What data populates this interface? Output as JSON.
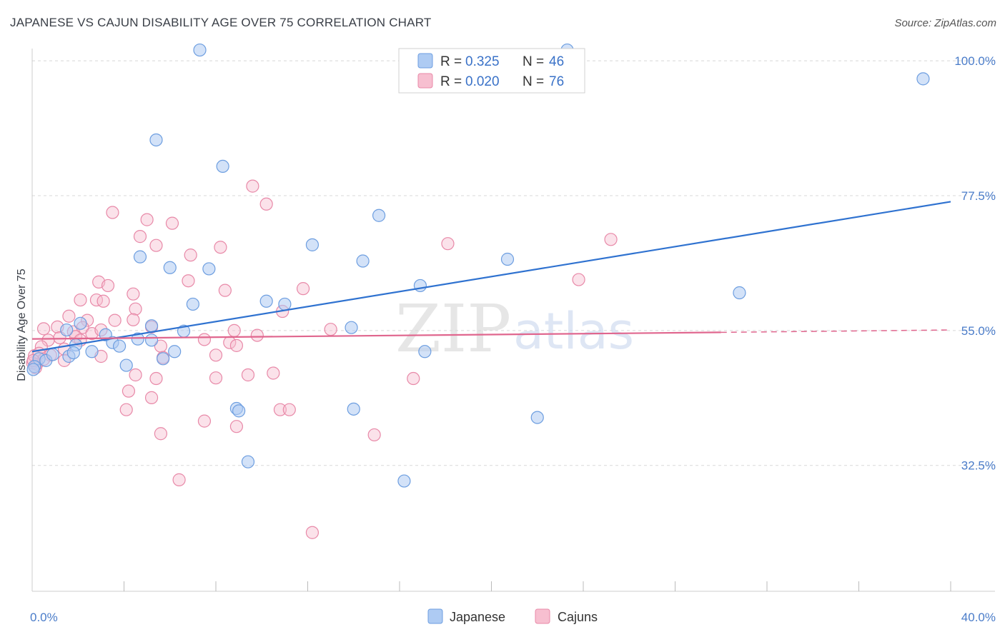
{
  "title": "JAPANESE VS CAJUN DISABILITY AGE OVER 75 CORRELATION CHART",
  "source": "Source: ZipAtlas.com",
  "watermark": {
    "zip": "ZIP",
    "atlas": "atlas"
  },
  "colors": {
    "japanese_fill": "#aecbf3",
    "japanese_stroke": "#6d9ee0",
    "japanese_line": "#2f72d0",
    "cajun_fill": "#f7bfd0",
    "cajun_stroke": "#e889a8",
    "cajun_line": "#e0668e",
    "grid": "#d8d8d8",
    "axis_label": "#4a7cc9"
  },
  "legend": {
    "rows": [
      {
        "r_label": "R =",
        "r_value": "0.325",
        "n_label": "N =",
        "n_value": "46"
      },
      {
        "r_label": "R =",
        "r_value": "0.020",
        "n_label": "N =",
        "n_value": "76"
      }
    ]
  },
  "bottom_legend": [
    "Japanese",
    "Cajuns"
  ],
  "chart_data": {
    "type": "scatter",
    "title": "JAPANESE VS CAJUN DISABILITY AGE OVER 75 CORRELATION CHART",
    "xlabel": "",
    "ylabel": "Disability Age Over 75",
    "xlim": [
      0,
      40
    ],
    "ylim": [
      11.5,
      103
    ],
    "x_tick_labels": [
      "0.0%",
      "40.0%"
    ],
    "y_ticks": [
      32.5,
      55.0,
      77.5,
      100.0
    ],
    "y_tick_labels": [
      "32.5%",
      "55.0%",
      "77.5%",
      "100.0%"
    ],
    "grid": true,
    "legend_position": "top-center",
    "series": [
      {
        "name": "Japanese",
        "trend": {
          "x": [
            0,
            40
          ],
          "y": [
            51.5,
            76.5
          ]
        },
        "points": [
          [
            7.3,
            101.8
          ],
          [
            23.3,
            101.8
          ],
          [
            38.8,
            97.0
          ],
          [
            5.4,
            86.8
          ],
          [
            8.3,
            82.4
          ],
          [
            15.1,
            74.2
          ],
          [
            12.2,
            69.3
          ],
          [
            14.4,
            66.6
          ],
          [
            4.7,
            67.3
          ],
          [
            6.0,
            65.5
          ],
          [
            7.7,
            65.3
          ],
          [
            20.7,
            66.9
          ],
          [
            16.9,
            62.5
          ],
          [
            30.8,
            61.3
          ],
          [
            7.0,
            59.4
          ],
          [
            10.2,
            59.9
          ],
          [
            11.0,
            59.4
          ],
          [
            2.1,
            56.2
          ],
          [
            1.5,
            55.1
          ],
          [
            3.2,
            54.3
          ],
          [
            5.2,
            55.8
          ],
          [
            6.6,
            54.9
          ],
          [
            13.9,
            55.5
          ],
          [
            1.9,
            52.6
          ],
          [
            3.5,
            53.0
          ],
          [
            3.8,
            52.4
          ],
          [
            4.6,
            53.6
          ],
          [
            1.6,
            50.7
          ],
          [
            1.8,
            51.3
          ],
          [
            2.6,
            51.5
          ],
          [
            0.3,
            50.3
          ],
          [
            0.6,
            50.0
          ],
          [
            0.9,
            51.0
          ],
          [
            5.2,
            53.4
          ],
          [
            5.7,
            50.3
          ],
          [
            6.2,
            51.5
          ],
          [
            17.1,
            51.5
          ],
          [
            4.1,
            49.2
          ],
          [
            0.1,
            49.0
          ],
          [
            8.9,
            42.0
          ],
          [
            9.0,
            41.6
          ],
          [
            14.0,
            41.9
          ],
          [
            22.0,
            40.5
          ],
          [
            9.4,
            33.1
          ],
          [
            16.2,
            29.9
          ],
          [
            0.05,
            48.5
          ]
        ]
      },
      {
        "name": "Cajuns",
        "trend": {
          "x": [
            0,
            30
          ],
          "y": [
            53.6,
            54.7
          ],
          "dashed": {
            "x": [
              30,
              40
            ],
            "y": [
              54.7,
              55.1
            ]
          }
        },
        "points": [
          [
            9.6,
            79.1
          ],
          [
            10.2,
            76.1
          ],
          [
            3.5,
            74.7
          ],
          [
            5.0,
            73.5
          ],
          [
            6.1,
            72.9
          ],
          [
            4.7,
            70.7
          ],
          [
            18.1,
            69.5
          ],
          [
            5.4,
            69.2
          ],
          [
            8.2,
            68.9
          ],
          [
            6.9,
            67.6
          ],
          [
            25.2,
            70.2
          ],
          [
            23.8,
            63.5
          ],
          [
            2.9,
            63.1
          ],
          [
            3.3,
            62.5
          ],
          [
            6.8,
            63.3
          ],
          [
            8.4,
            61.7
          ],
          [
            11.8,
            62.0
          ],
          [
            4.4,
            61.1
          ],
          [
            2.1,
            60.1
          ],
          [
            2.8,
            60.1
          ],
          [
            3.1,
            59.9
          ],
          [
            4.5,
            58.6
          ],
          [
            10.9,
            58.2
          ],
          [
            1.6,
            57.4
          ],
          [
            2.4,
            56.7
          ],
          [
            3.6,
            56.7
          ],
          [
            4.4,
            56.8
          ],
          [
            5.2,
            55.6
          ],
          [
            0.5,
            55.3
          ],
          [
            1.1,
            55.6
          ],
          [
            1.8,
            54.8
          ],
          [
            2.2,
            55.5
          ],
          [
            2.6,
            54.5
          ],
          [
            3.0,
            55.1
          ],
          [
            8.8,
            55.0
          ],
          [
            13.0,
            55.2
          ],
          [
            9.8,
            54.2
          ],
          [
            1.2,
            53.8
          ],
          [
            0.7,
            53.4
          ],
          [
            1.9,
            54.0
          ],
          [
            2.1,
            53.4
          ],
          [
            7.5,
            53.5
          ],
          [
            8.6,
            53.0
          ],
          [
            8.9,
            52.5
          ],
          [
            5.6,
            52.4
          ],
          [
            0.4,
            52.3
          ],
          [
            1.4,
            51.9
          ],
          [
            0.8,
            50.9
          ],
          [
            1.4,
            50.0
          ],
          [
            3.0,
            50.7
          ],
          [
            5.7,
            50.5
          ],
          [
            8.0,
            50.9
          ],
          [
            4.5,
            47.6
          ],
          [
            5.4,
            47.0
          ],
          [
            8.0,
            47.1
          ],
          [
            9.4,
            47.6
          ],
          [
            10.5,
            47.9
          ],
          [
            16.6,
            47.0
          ],
          [
            4.2,
            44.9
          ],
          [
            5.2,
            43.8
          ],
          [
            4.1,
            41.8
          ],
          [
            10.8,
            41.8
          ],
          [
            11.2,
            41.8
          ],
          [
            7.5,
            39.9
          ],
          [
            8.9,
            39.0
          ],
          [
            5.6,
            37.8
          ],
          [
            14.9,
            37.6
          ],
          [
            6.4,
            30.1
          ],
          [
            12.2,
            21.3
          ],
          [
            0.02,
            49.6
          ],
          [
            0.1,
            50.8
          ],
          [
            0.2,
            49.4
          ],
          [
            0.15,
            48.8
          ],
          [
            0.3,
            51.2
          ],
          [
            0.5,
            50.2
          ],
          [
            0.05,
            50.0
          ]
        ]
      }
    ]
  }
}
